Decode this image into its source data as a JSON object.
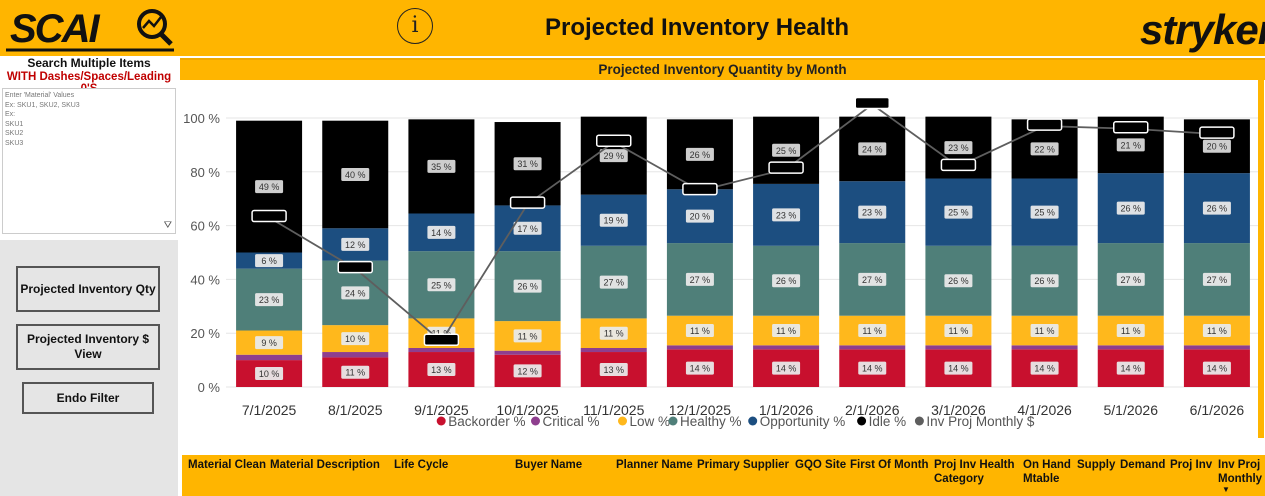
{
  "header": {
    "logo_text": "SCAI",
    "info_icon": "info-icon",
    "title": "Projected Inventory Health",
    "brand": "stryker"
  },
  "search": {
    "title": "Search Multiple Items",
    "subtitle": "WITH Dashes/Spaces/Leading 0'S",
    "placeholder": "Enter 'Material' Values\nEx: SKU1, SKU2, SKU3\nEx:\nSKU1\nSKU2\nSKU3"
  },
  "buttons": {
    "qty": "Projected Inventory Qty",
    "dollar": "Projected Inventory $ View",
    "endo": "Endo Filter"
  },
  "colors": {
    "header": "#FFB500",
    "backorder": "#C8102E",
    "critical": "#8E3E8E",
    "low": "#FFB81C",
    "healthy": "#4F7F79",
    "opportunity": "#1C4E80",
    "idle": "#000000",
    "line": "#5E5E5E"
  },
  "chart_data": {
    "type": "bar",
    "title": "Projected Inventory Quantity by Month",
    "categories": [
      "7/1/2025",
      "8/1/2025",
      "9/1/2025",
      "10/1/2025",
      "11/1/2025",
      "12/1/2025",
      "1/1/2026",
      "2/1/2026",
      "3/1/2026",
      "4/1/2026",
      "5/1/2026",
      "6/1/2026"
    ],
    "y_ticks": [
      "0 %",
      "20 %",
      "40 %",
      "60 %",
      "80 %",
      "100 %"
    ],
    "ylim": [
      0,
      100
    ],
    "legend_position": "bottom",
    "series": [
      {
        "name": "Backorder %",
        "color": "#C8102E",
        "values": [
          10,
          11,
          13,
          12,
          13,
          14,
          14,
          14,
          14,
          14,
          14,
          14
        ],
        "labels": [
          "10 %",
          "11 %",
          "13 %",
          "12 %",
          "13 %",
          "14 %",
          "14 %",
          "14 %",
          "14 %",
          "14 %",
          "14 %",
          "14 %"
        ]
      },
      {
        "name": "Critical %",
        "color": "#8E3E8E",
        "values": [
          2,
          2,
          1.5,
          1.5,
          1.5,
          1.5,
          1.5,
          1.5,
          1.5,
          1.5,
          1.5,
          1.5
        ],
        "labels": [
          "",
          "",
          "",
          "",
          "",
          "",
          "",
          "",
          "",
          "",
          "",
          ""
        ]
      },
      {
        "name": "Low %",
        "color": "#FFB81C",
        "values": [
          9,
          10,
          11,
          11,
          11,
          11,
          11,
          11,
          11,
          11,
          11,
          11
        ],
        "labels": [
          "9 %",
          "10 %",
          "11 %",
          "11 %",
          "11 %",
          "11 %",
          "11 %",
          "11 %",
          "11 %",
          "11 %",
          "11 %",
          "11 %"
        ]
      },
      {
        "name": "Healthy %",
        "color": "#4F7F79",
        "values": [
          23,
          24,
          25,
          26,
          27,
          27,
          26,
          27,
          26,
          26,
          27,
          27
        ],
        "labels": [
          "23 %",
          "24 %",
          "25 %",
          "26 %",
          "27 %",
          "27 %",
          "26 %",
          "27 %",
          "26 %",
          "26 %",
          "27 %",
          "27 %"
        ]
      },
      {
        "name": "Opportunity %",
        "color": "#1C4E80",
        "values": [
          6,
          12,
          14,
          17,
          19,
          20,
          23,
          23,
          25,
          25,
          26,
          26
        ],
        "labels": [
          "6 %",
          "12 %",
          "14 %",
          "17 %",
          "19 %",
          "20 %",
          "23 %",
          "23 %",
          "25 %",
          "25 %",
          "26 %",
          "26 %"
        ]
      },
      {
        "name": "Idle %",
        "color": "#000000",
        "values": [
          49,
          40,
          35,
          31,
          29,
          26,
          25,
          24,
          23,
          22,
          21,
          20
        ],
        "labels": [
          "49 %",
          "40 %",
          "35 %",
          "31 %",
          "29 %",
          "26 %",
          "25 %",
          "24 %",
          "23 %",
          "22 %",
          "21 %",
          "20 %"
        ]
      }
    ],
    "line_series": {
      "name": "Inv Proj Monthly $",
      "color": "#5E5E5E",
      "values_percent_axis": [
        63,
        44,
        17,
        68,
        91,
        73,
        81,
        105,
        82,
        97,
        96,
        94
      ]
    }
  },
  "table": {
    "columns": [
      "Material Clean",
      "Material Description",
      "Life Cycle",
      "Buyer Name",
      "Planner Name",
      "Primary Supplier",
      "GQO Site",
      "First Of Month",
      "Proj Inv Health Category",
      "On Hand Mtable",
      "Supply",
      "Demand",
      "Proj Inv",
      "Inv Proj Monthly"
    ]
  }
}
